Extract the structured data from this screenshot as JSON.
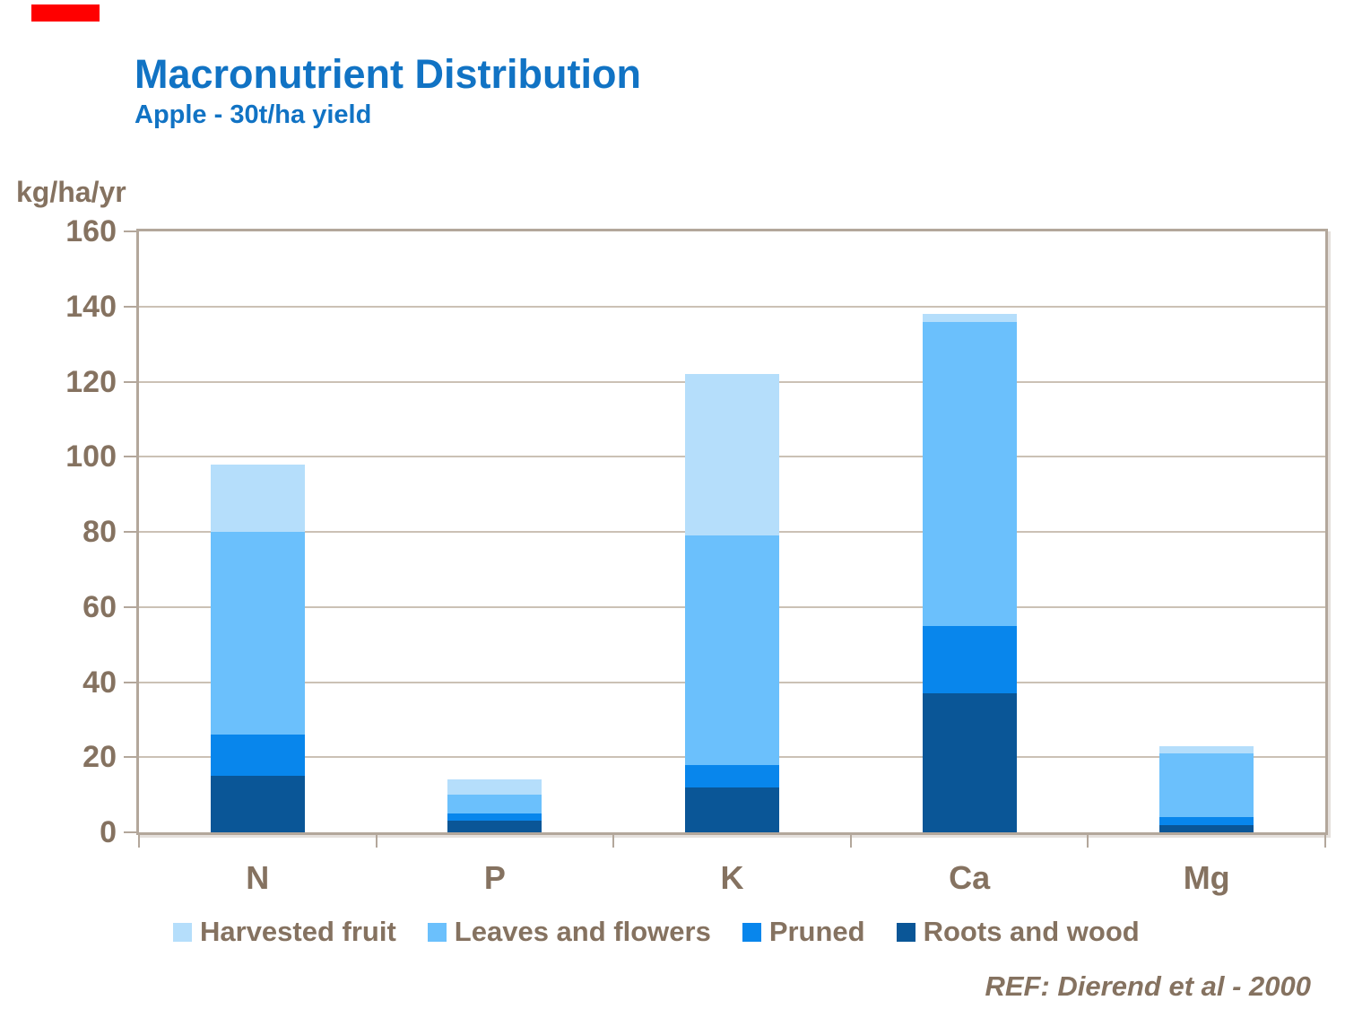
{
  "header": {
    "title": "Macronutrient Distribution",
    "subtitle": "Apple - 30t/ha yield",
    "title_color": "#1173c4",
    "accent_bar_color": "#ff0000"
  },
  "footer": {
    "reference": "REF: Dierend et al - 2000"
  },
  "chart_data": {
    "type": "bar",
    "stacked": true,
    "title": "Macronutrient Distribution",
    "subtitle": "Apple - 30t/ha yield",
    "ylabel": "kg/ha/yr",
    "xlabel": "",
    "categories": [
      "N",
      "P",
      "K",
      "Ca",
      "Mg"
    ],
    "series": [
      {
        "name": "Harvested fruit",
        "color": "#b5defb",
        "values": [
          18,
          4,
          43,
          2,
          2
        ]
      },
      {
        "name": "Leaves and flowers",
        "color": "#6bc0fc",
        "values": [
          54,
          5,
          61,
          81,
          17
        ]
      },
      {
        "name": "Pruned",
        "color": "#0886ec",
        "values": [
          11,
          2,
          6,
          18,
          2
        ]
      },
      {
        "name": "Roots and wood",
        "color": "#0a5697",
        "values": [
          15,
          3,
          12,
          37,
          2
        ]
      }
    ],
    "stack_order_bottom_to_top": [
      "Roots and wood",
      "Pruned",
      "Leaves and flowers",
      "Harvested fruit"
    ],
    "totals": [
      98,
      14,
      122,
      138,
      23
    ],
    "ylim": [
      0,
      160
    ],
    "ytick_step": 20,
    "yticks": [
      0,
      20,
      40,
      60,
      80,
      100,
      120,
      140,
      160
    ],
    "grid": true,
    "legend_position": "bottom",
    "axis_text_color": "#857260",
    "grid_color": "#cbc1b5",
    "frame_color": "#b3a79b"
  }
}
